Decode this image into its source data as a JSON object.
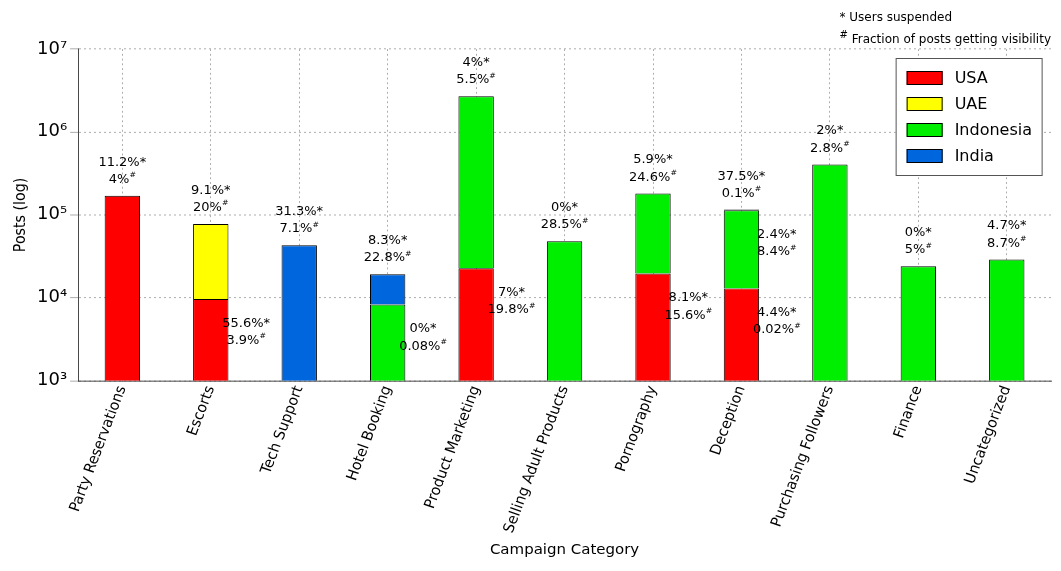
{
  "chart_data": {
    "type": "bar",
    "stacked": true,
    "log": "y",
    "xlabel": "Campaign Category",
    "ylabel": "Posts (log)",
    "categories": [
      "Party Reservations",
      "Escorts",
      "Tech Support",
      "Hotel Booking",
      "Product Marketing",
      "Selling Adult Products",
      "Pornography",
      "Deception",
      "Purchasing Followers",
      "Finance",
      "Uncategorized"
    ],
    "series": [
      {
        "name": "USA",
        "color": "#ff0000",
        "values": [
          170000,
          9700,
          null,
          null,
          22700,
          null,
          19600,
          13000,
          null,
          null,
          null
        ]
      },
      {
        "name": "UAE",
        "color": "#ffff00",
        "values": [
          null,
          68000,
          null,
          null,
          null,
          null,
          null,
          null,
          null,
          null,
          null
        ]
      },
      {
        "name": "Indonesia",
        "color": "#00ee00",
        "values": [
          null,
          null,
          null,
          8300,
          2680000,
          48000,
          162000,
          101000,
          406000,
          24000,
          29000
        ]
      },
      {
        "name": "India",
        "color": "#0066dd",
        "values": [
          null,
          null,
          43000,
          10900,
          null,
          null,
          null,
          2000,
          null,
          null,
          null
        ]
      }
    ],
    "ylim": [
      1000,
      10000000
    ],
    "yticks": [
      {
        "value": 1000,
        "label": "10³"
      },
      {
        "value": 10000,
        "label": "10⁴"
      },
      {
        "value": 100000,
        "label": "10⁵"
      },
      {
        "value": 1000000,
        "label": "10⁶"
      },
      {
        "value": 10000000,
        "label": "10⁷"
      }
    ],
    "grid": true,
    "legend": "top right",
    "annotations": [
      "* Users suspended",
      "$^{#}$ Fraction of posts getting visibility",
      {
        "text": "11.2%*\n4%$^{#}$",
        "x": "Party Reservations",
        "y": 170000
      },
      {
        "text": "9.1%*\n20%$^{#}$",
        "x": "Escorts",
        "y": 77700
      },
      {
        "text": "55.6%*\n3.9%$^{#}$",
        "x": "Escorts",
        "y": 9700
      },
      {
        "text": "31.3%*\n7.1%$^{#}$",
        "x": "Tech Support",
        "y": 43000
      },
      {
        "text": "8.3%*\n22.8%$^{#}$",
        "x": "Hotel Booking",
        "y": 19200
      },
      {
        "text": "0%*\n0.08%$^{#}$",
        "x": "Hotel Booking",
        "y": 8300
      },
      {
        "text": "4%*\n5.5%$^{#}$",
        "x": "Product Marketing",
        "y": 2702700
      },
      {
        "text": "7%*\n19.8%$^{#}$",
        "x": "Product Marketing",
        "y": 22700
      },
      {
        "text": "0%*\n28.5%$^{#}$",
        "x": "Selling Adult Products",
        "y": 48000
      },
      {
        "text": "5.9%*\n24.6%$^{#}$",
        "x": "Pornography",
        "y": 181600
      },
      {
        "text": "8.1%*\n15.6%$^{#}$",
        "x": "Pornography",
        "y": 19600
      },
      {
        "text": "37.5%*\n0.1%$^{#}$",
        "x": "Deception",
        "y": 116000
      },
      {
        "text": "2.4%*\n8.4%$^{#}$",
        "x": "Deception",
        "y": 114000
      },
      {
        "text": "4.4%*\n0.02%$^{#}$",
        "x": "Deception",
        "y": 13000
      },
      {
        "text": "2%*\n2.8%$^{#}$",
        "x": "Purchasing Followers",
        "y": 406000
      },
      {
        "text": "0%*\n5%$^{#}$",
        "x": "Finance",
        "y": 24000
      },
      {
        "text": "4.7%*\n8.7%$^{#}$",
        "x": "Uncategorized",
        "y": 29000
      }
    ]
  }
}
